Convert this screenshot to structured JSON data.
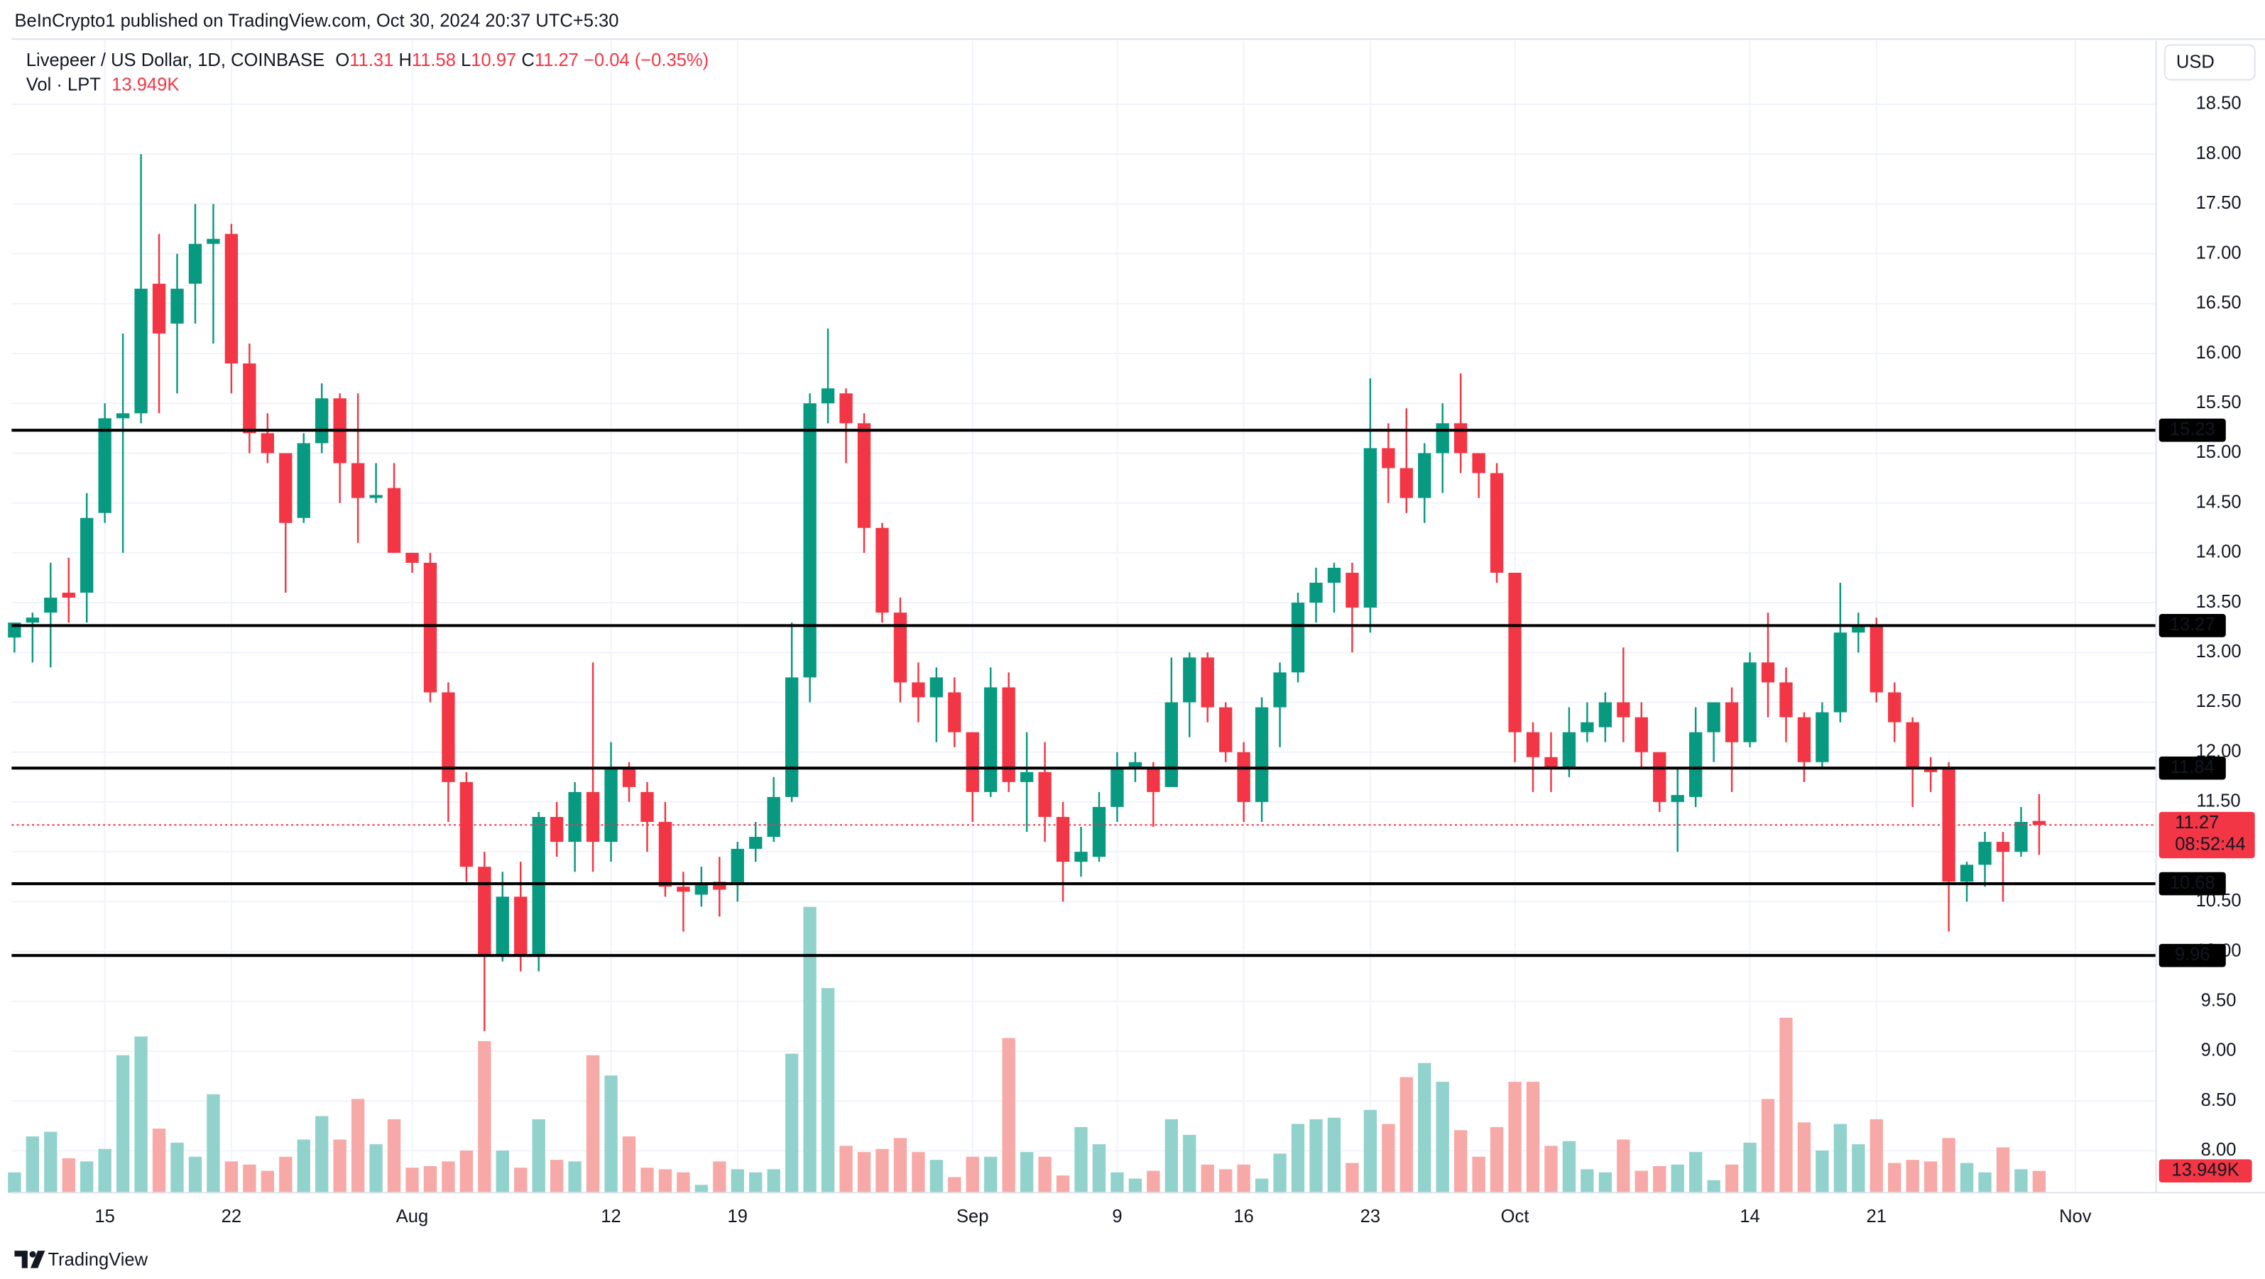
{
  "header": "BeInCrypto1 published on TradingView.com, Oct 30, 2024 20:37 UTC+5:30",
  "footer": "TradingView",
  "chart_data": {
    "type": "candlestick",
    "title": "Livepeer / US Dollar, 1D, COINBASE",
    "ohlc_labels": [
      "O",
      "H",
      "L",
      "C"
    ],
    "change": {
      "value": -0.04,
      "label": "−0.04"
    },
    "change_pct": {
      "value": -0.35,
      "label": "(−0.35%)"
    },
    "currency": "USD",
    "volume_title": "Vol · LPT",
    "volume_label": "13.949K",
    "countdown": "08:52:44",
    "up_color": "#089981",
    "down_color": "#f23645",
    "volume_up_color": "#92d2cc",
    "volume_down_color": "#f7a9a7",
    "level_color": "#000000",
    "grid": true,
    "xlim": [
      -0.8,
      118.47
    ],
    "xticks": [
      {
        "value": 5,
        "label": "15"
      },
      {
        "value": 12,
        "label": "22"
      },
      {
        "value": 22,
        "label": "Aug"
      },
      {
        "value": 33,
        "label": "12"
      },
      {
        "value": 40,
        "label": "19"
      },
      {
        "value": 53,
        "label": "Sep"
      },
      {
        "value": 61,
        "label": "9"
      },
      {
        "value": 68,
        "label": "16"
      },
      {
        "value": 75,
        "label": "23"
      },
      {
        "value": 83,
        "label": "Oct"
      },
      {
        "value": 96,
        "label": "14"
      },
      {
        "value": 103,
        "label": "21"
      },
      {
        "value": 114,
        "label": "Nov"
      }
    ],
    "ylim": [
      7.58,
      19.11
    ],
    "yticks": [
      {
        "value": 8,
        "label": "8.00"
      },
      {
        "value": 8.5,
        "label": "8.50"
      },
      {
        "value": 9,
        "label": "9.00"
      },
      {
        "value": 9.5,
        "label": "9.50"
      },
      {
        "value": 10,
        "label": "10.00"
      },
      {
        "value": 10.5,
        "label": "10.50"
      },
      {
        "value": 11,
        "label": "11.00"
      },
      {
        "value": 11.5,
        "label": "11.50"
      },
      {
        "value": 12,
        "label": "12.00"
      },
      {
        "value": 12.5,
        "label": "12.50"
      },
      {
        "value": 13,
        "label": "13.00"
      },
      {
        "value": 13.5,
        "label": "13.50"
      },
      {
        "value": 14,
        "label": "14.00"
      },
      {
        "value": 14.5,
        "label": "14.50"
      },
      {
        "value": 15,
        "label": "15.00"
      },
      {
        "value": 15.5,
        "label": "15.50"
      },
      {
        "value": 16,
        "label": "16.00"
      },
      {
        "value": 16.5,
        "label": "16.50"
      },
      {
        "value": 17,
        "label": "17.00"
      },
      {
        "value": 17.5,
        "label": "17.50"
      },
      {
        "value": 18,
        "label": "18.00"
      },
      {
        "value": 18.5,
        "label": "18.50"
      }
    ],
    "levels": [
      15.23,
      13.27,
      11.84,
      10.68,
      9.96
    ],
    "open": [
      13.15,
      13.3,
      13.4,
      13.6,
      13.6,
      14.4,
      15.35,
      15.4,
      16.7,
      16.3,
      16.7,
      17.1,
      17.2,
      15.9,
      15.2,
      15.0,
      14.35,
      15.1,
      15.55,
      14.9,
      14.55,
      14.65,
      14.0,
      13.9,
      12.6,
      11.7,
      10.85,
      9.95,
      10.55,
      9.95,
      11.35,
      11.1,
      11.6,
      11.1,
      11.85,
      11.6,
      11.3,
      10.65,
      10.57,
      10.7,
      10.68,
      11.03,
      11.15,
      11.55,
      12.75,
      15.5,
      15.6,
      15.3,
      14.25,
      13.4,
      12.7,
      12.55,
      12.6,
      12.2,
      11.6,
      12.65,
      11.7,
      11.8,
      11.35,
      10.9,
      10.95,
      11.45,
      11.84,
      11.85,
      11.65,
      12.5,
      12.95,
      12.45,
      12.0,
      11.5,
      12.45,
      12.8,
      13.5,
      13.7,
      13.8,
      13.45,
      15.05,
      14.85,
      14.55,
      15.0,
      15.3,
      15.0,
      14.8,
      13.8,
      12.2,
      11.95,
      11.85,
      12.2,
      12.25,
      12.5,
      12.35,
      12.0,
      11.5,
      11.55,
      12.2,
      12.5,
      12.1,
      12.9,
      12.7,
      12.35,
      11.9,
      12.4,
      13.2,
      13.28,
      12.6,
      12.3,
      11.85,
      11.85,
      10.7,
      10.87,
      11.1,
      11.0,
      11.31
    ],
    "high": [
      13.3,
      13.4,
      13.9,
      13.95,
      14.6,
      15.5,
      16.2,
      18.0,
      17.2,
      17.0,
      17.5,
      17.5,
      17.3,
      16.1,
      15.4,
      15.0,
      15.2,
      15.7,
      15.6,
      15.6,
      14.9,
      14.9,
      14.0,
      14.0,
      12.7,
      11.8,
      11.0,
      10.8,
      10.9,
      11.4,
      11.5,
      11.7,
      12.9,
      12.1,
      11.9,
      11.7,
      11.5,
      10.8,
      10.85,
      10.95,
      11.1,
      11.3,
      11.75,
      13.3,
      15.6,
      16.25,
      15.65,
      15.4,
      14.3,
      13.55,
      12.9,
      12.85,
      12.75,
      12.2,
      12.85,
      12.8,
      12.2,
      12.1,
      11.5,
      11.25,
      11.6,
      12.0,
      12.0,
      11.9,
      12.95,
      13.0,
      13.0,
      12.5,
      12.1,
      12.55,
      12.9,
      13.6,
      13.85,
      13.9,
      13.9,
      15.75,
      15.3,
      15.45,
      15.1,
      15.5,
      15.8,
      15.0,
      14.9,
      13.8,
      12.3,
      12.2,
      12.45,
      12.5,
      12.6,
      13.05,
      12.5,
      12.0,
      11.85,
      12.45,
      12.5,
      12.65,
      13.0,
      13.4,
      12.85,
      12.4,
      12.5,
      13.7,
      13.4,
      13.35,
      12.7,
      12.35,
      11.95,
      11.9,
      10.9,
      11.2,
      11.2,
      11.45,
      11.58
    ],
    "low": [
      13.0,
      12.9,
      12.85,
      13.3,
      13.3,
      14.3,
      14.0,
      15.3,
      15.4,
      15.6,
      16.3,
      16.1,
      15.6,
      15.0,
      14.9,
      13.6,
      14.3,
      15.0,
      14.5,
      14.1,
      14.5,
      14.0,
      13.8,
      12.5,
      11.3,
      10.7,
      9.2,
      9.9,
      9.8,
      9.8,
      10.95,
      10.8,
      10.8,
      10.9,
      11.5,
      11.0,
      10.55,
      10.2,
      10.45,
      10.35,
      10.5,
      10.9,
      11.1,
      11.5,
      12.5,
      15.3,
      14.9,
      14.0,
      13.3,
      12.5,
      12.3,
      12.1,
      12.05,
      11.3,
      11.55,
      11.6,
      11.2,
      11.1,
      10.5,
      10.75,
      10.9,
      11.3,
      11.7,
      11.25,
      11.65,
      12.15,
      12.3,
      11.9,
      11.3,
      11.3,
      12.05,
      12.7,
      13.3,
      13.4,
      13.0,
      13.2,
      14.5,
      14.4,
      14.3,
      14.6,
      14.8,
      14.55,
      13.7,
      11.9,
      11.6,
      11.6,
      11.75,
      12.1,
      12.1,
      12.1,
      11.85,
      11.4,
      11.0,
      11.45,
      11.9,
      11.6,
      12.05,
      12.35,
      12.1,
      11.7,
      11.85,
      12.3,
      13.0,
      12.5,
      12.1,
      11.45,
      11.6,
      10.2,
      10.5,
      10.65,
      10.5,
      10.95,
      10.97
    ],
    "close": [
      13.3,
      13.35,
      13.55,
      13.55,
      14.35,
      15.35,
      15.4,
      16.65,
      16.2,
      16.65,
      17.1,
      17.15,
      15.9,
      15.2,
      15.0,
      14.3,
      15.1,
      15.55,
      14.9,
      14.55,
      14.58,
      14.0,
      13.9,
      12.6,
      11.7,
      10.85,
      9.95,
      10.55,
      9.95,
      11.35,
      11.1,
      11.6,
      11.1,
      11.85,
      11.65,
      11.3,
      10.65,
      10.6,
      10.68,
      10.62,
      11.03,
      11.15,
      11.55,
      12.75,
      15.5,
      15.65,
      15.3,
      14.25,
      13.4,
      12.7,
      12.55,
      12.75,
      12.2,
      11.6,
      12.65,
      11.7,
      11.8,
      11.35,
      10.9,
      11.0,
      11.45,
      11.85,
      11.9,
      11.6,
      12.5,
      12.95,
      12.45,
      12.0,
      11.5,
      12.45,
      12.8,
      13.5,
      13.7,
      13.85,
      13.45,
      15.05,
      14.85,
      14.55,
      15.0,
      15.3,
      15.0,
      14.8,
      13.8,
      12.2,
      11.95,
      11.85,
      12.2,
      12.3,
      12.5,
      12.35,
      12.0,
      11.5,
      11.57,
      12.2,
      12.5,
      12.1,
      12.9,
      12.7,
      12.35,
      11.9,
      12.4,
      13.2,
      13.27,
      12.6,
      12.3,
      11.83,
      11.8,
      10.7,
      10.87,
      11.1,
      11.0,
      11.3,
      11.27
    ],
    "volume": [
      13,
      36,
      39,
      22,
      20,
      28,
      88,
      100,
      41,
      32,
      23,
      63,
      20,
      18,
      14,
      23,
      34,
      49,
      34,
      60,
      31,
      47,
      16,
      17,
      20,
      27,
      97,
      27,
      16,
      47,
      21,
      20,
      88,
      75,
      36,
      16,
      15,
      13,
      5,
      20,
      15,
      13,
      15,
      89,
      183,
      131,
      30,
      26,
      28,
      35,
      26,
      21,
      10,
      23,
      23,
      99,
      26,
      23,
      11,
      42,
      31,
      13,
      9,
      14,
      47,
      37,
      18,
      15,
      18,
      9,
      25,
      44,
      47,
      48,
      19,
      53,
      44,
      74,
      83,
      71,
      40,
      23,
      42,
      71,
      71,
      30,
      33,
      15,
      13,
      34,
      14,
      17,
      18,
      26,
      8,
      18,
      32,
      60,
      112,
      45,
      27,
      44,
      31,
      47,
      19,
      21,
      20,
      35,
      19,
      13,
      29,
      15,
      13.949
    ]
  }
}
